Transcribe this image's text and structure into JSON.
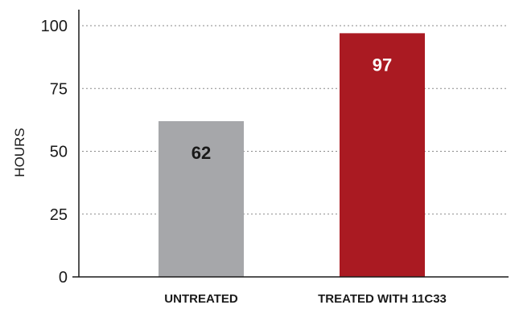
{
  "chart_data": {
    "type": "bar",
    "title": "",
    "xlabel": "",
    "ylabel": "HOURS",
    "ylim": [
      0,
      100
    ],
    "yticks": [
      0,
      25,
      50,
      75,
      100
    ],
    "grid": true,
    "categories": [
      "UNTREATED",
      "TREATED WITH 11C33"
    ],
    "values": [
      62,
      97
    ],
    "bar_colors": [
      "#a6a7aa",
      "#aa1a22"
    ],
    "label_colors": [
      "#1a1a1a",
      "#ffffff"
    ]
  }
}
